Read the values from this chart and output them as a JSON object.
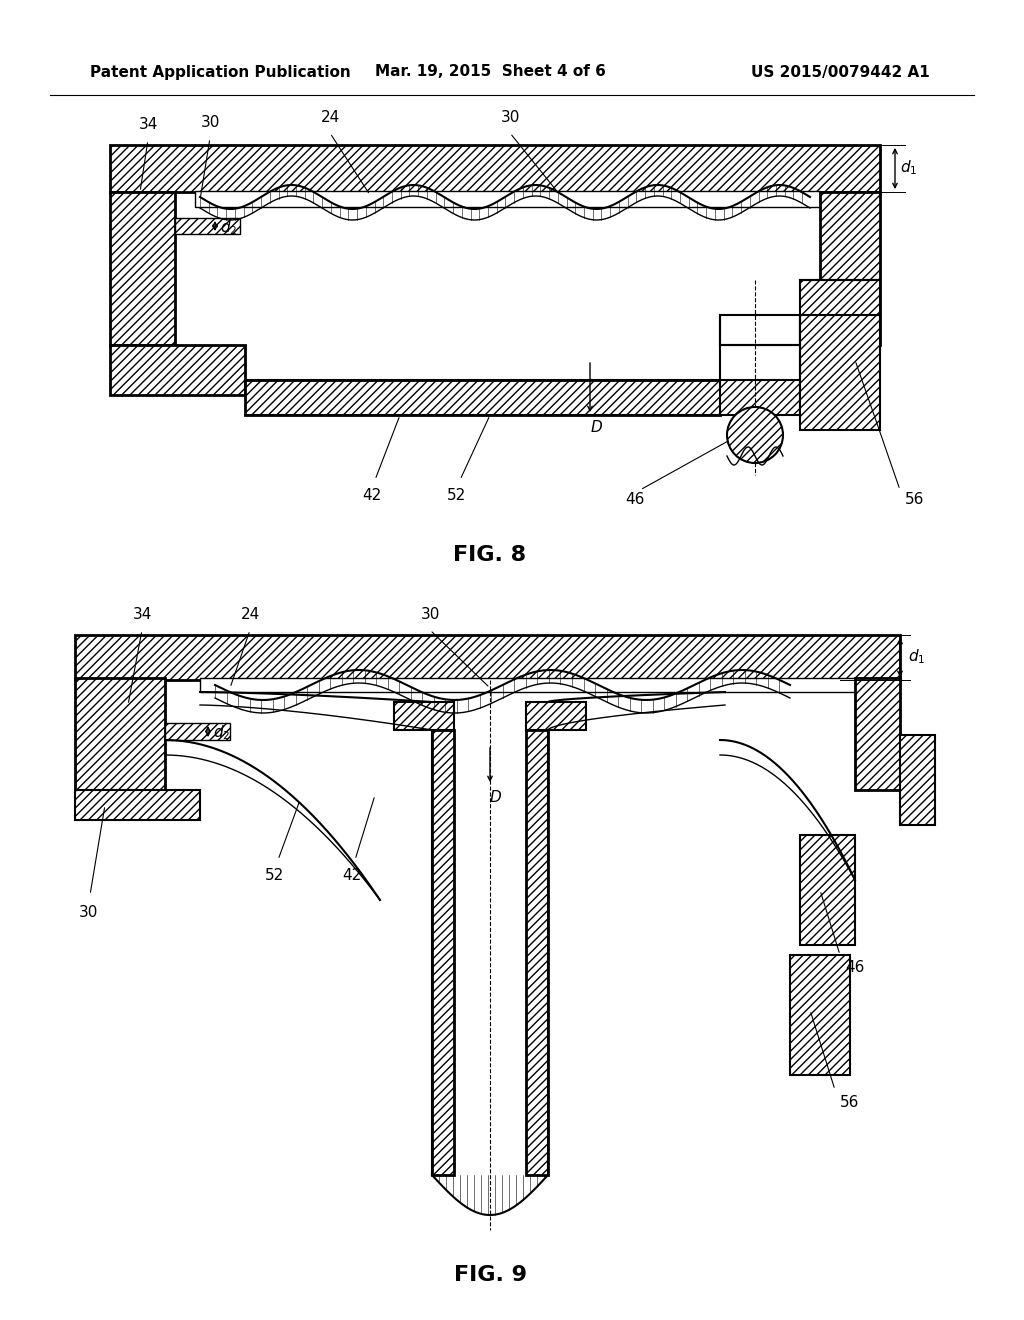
{
  "background_color": "#ffffff",
  "header_left": "Patent Application Publication",
  "header_center": "Mar. 19, 2015  Sheet 4 of 6",
  "header_right": "US 2015/0079442 A1",
  "fig8_label": "FIG. 8",
  "fig9_label": "FIG. 9",
  "line_color": "#000000",
  "hatch_pattern": "////",
  "header_fontsize": 11,
  "fig_label_fontsize": 16
}
